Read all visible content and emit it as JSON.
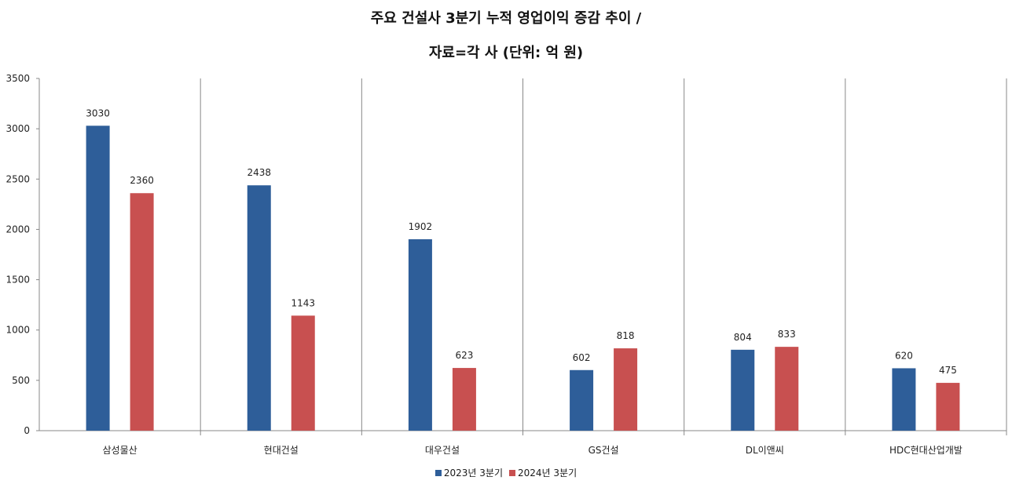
{
  "title_line1": "주요 건설사 3분기 누적 영업이익 증감 추이 /",
  "title_line2": "자료=각 사 (단위: 억 원)",
  "chart_data": {
    "type": "bar",
    "categories": [
      "삼성물산",
      "현대건설",
      "대우건설",
      "GS건설",
      "DL이앤씨",
      "HDC현대산업개발"
    ],
    "series": [
      {
        "name": "2023년 3분기",
        "color": "#2E5E99",
        "values": [
          3030,
          2438,
          1902,
          602,
          804,
          620
        ]
      },
      {
        "name": "2024년 3분기",
        "color": "#C85050",
        "values": [
          2360,
          1143,
          623,
          818,
          833,
          475
        ]
      }
    ],
    "yticks": [
      "0",
      "500",
      "1000",
      "1500",
      "2000",
      "2500",
      "3000",
      "3500"
    ],
    "ylim": [
      0,
      3500
    ],
    "legend_position": "bottom",
    "data_labels": true
  }
}
